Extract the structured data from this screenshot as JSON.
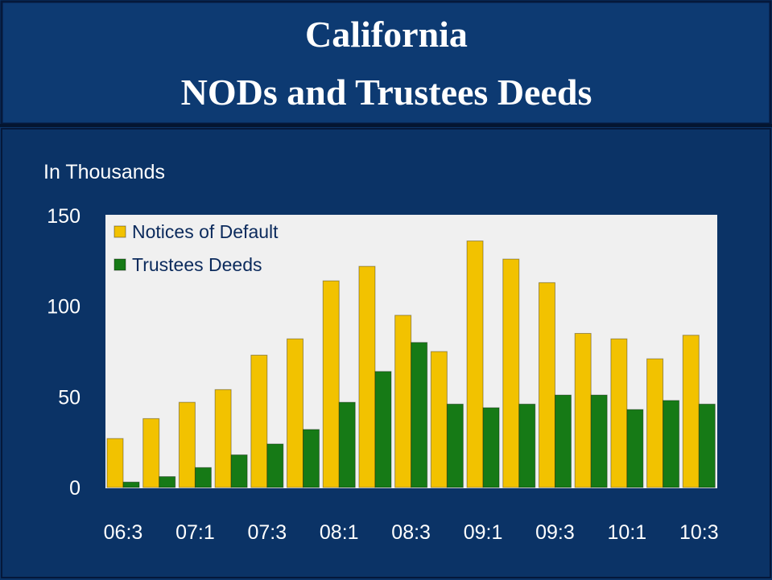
{
  "chart_data": {
    "type": "bar",
    "title": [
      "California",
      "NODs and Trustees Deeds"
    ],
    "y_label": "In Thousands",
    "categories": [
      "06:3",
      null,
      "07:1",
      null,
      "07:3",
      null,
      "08:1",
      null,
      "08:3",
      null,
      "09:1",
      null,
      "09:3",
      null,
      "10:1",
      null,
      "10:3"
    ],
    "series": [
      {
        "name": "Notices of Default",
        "color": "#f2c200",
        "values": [
          27,
          38,
          47,
          54,
          73,
          82,
          114,
          122,
          95,
          75,
          136,
          126,
          113,
          85,
          82,
          71,
          84
        ]
      },
      {
        "name": "Trustees Deeds",
        "color": "#167a16",
        "values": [
          3,
          6,
          11,
          18,
          24,
          32,
          47,
          64,
          80,
          46,
          44,
          46,
          51,
          51,
          43,
          48,
          46
        ]
      }
    ],
    "ylim": [
      0,
      150
    ],
    "yticks": [
      0,
      50,
      100,
      150
    ],
    "legend": "upper left"
  }
}
